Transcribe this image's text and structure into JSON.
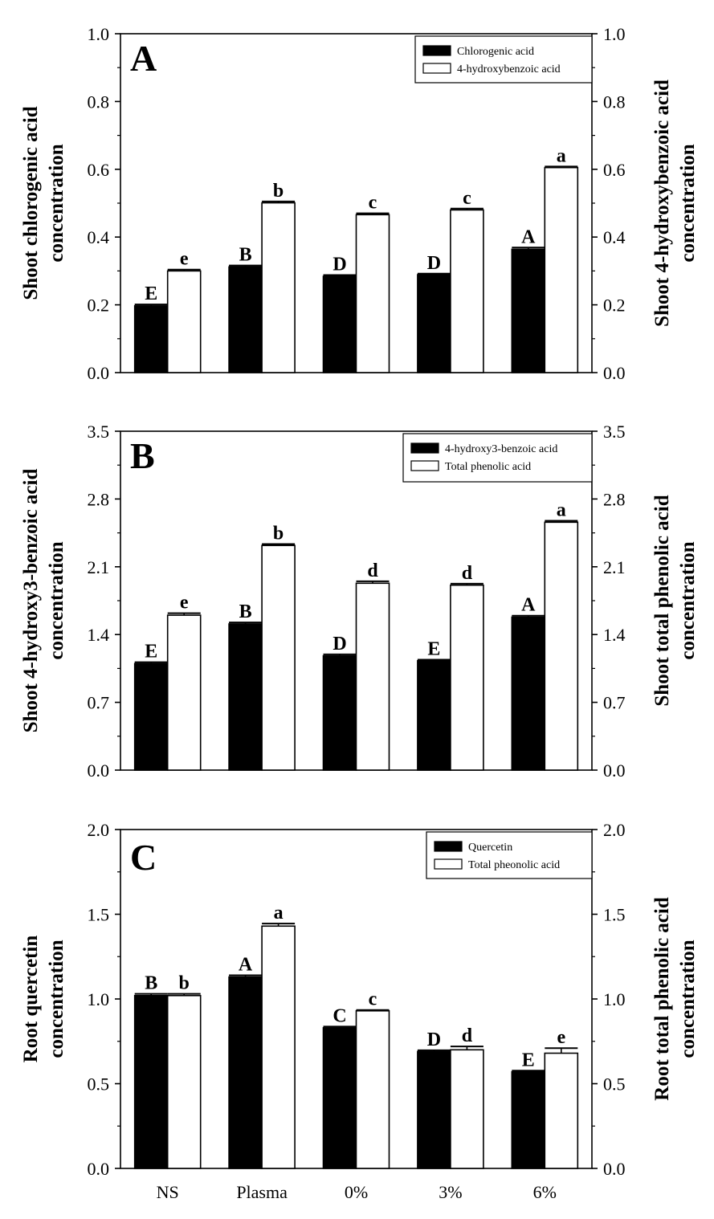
{
  "chart_data": [
    {
      "type": "bar",
      "panel_label": "A",
      "categories": [
        "NS",
        "Plasma",
        "0%",
        "3%",
        "6%"
      ],
      "ylim": [
        0,
        1.0
      ],
      "yticks": [
        "0.0",
        "0.2",
        "0.4",
        "0.6",
        "0.8",
        "1.0"
      ],
      "ylabel_left": [
        "Shoot chlorogenic acid",
        "concentration"
      ],
      "ylabel_right": [
        "Shoot 4-hydroxybenzoic acid",
        "concentration"
      ],
      "legend_position": "top-right",
      "series": [
        {
          "name": "Chlorogenic acid",
          "fill": "#000000",
          "values": [
            0.197,
            0.312,
            0.284,
            0.289,
            0.364
          ],
          "errors": [
            0.004,
            0.004,
            0.004,
            0.003,
            0.005
          ],
          "labels": [
            "E",
            "B",
            "D",
            "D",
            "A"
          ]
        },
        {
          "name": "4-hydroxybenzoic acid",
          "fill": "#ffffff",
          "values": [
            0.3,
            0.501,
            0.466,
            0.48,
            0.605
          ],
          "errors": [
            0.004,
            0.004,
            0.004,
            0.004,
            0.003
          ],
          "labels": [
            "e",
            "b",
            "c",
            "c",
            "a"
          ]
        }
      ]
    },
    {
      "type": "bar",
      "panel_label": "B",
      "categories": [
        "NS",
        "Plasma",
        "0%",
        "3%",
        "6%"
      ],
      "ylim": [
        0,
        3.5
      ],
      "yticks": [
        "0.0",
        "0.7",
        "1.4",
        "2.1",
        "2.8",
        "3.5"
      ],
      "ylabel_left": [
        "Shoot 4-hydroxy3-benzoic acid",
        "concentration"
      ],
      "ylabel_right": [
        "Shoot total phenolic acid",
        "concentration"
      ],
      "legend_position": "top-right",
      "series": [
        {
          "name": "4-hydroxy3-benzoic acid",
          "fill": "#000000",
          "values": [
            1.1,
            1.51,
            1.18,
            1.13,
            1.58
          ],
          "errors": [
            0.015,
            0.015,
            0.015,
            0.01,
            0.015
          ],
          "labels": [
            "E",
            "B",
            "D",
            "E",
            "A"
          ]
        },
        {
          "name": "Total phenolic acid",
          "fill": "#ffffff",
          "values": [
            1.6,
            2.32,
            1.93,
            1.91,
            2.56
          ],
          "errors": [
            0.02,
            0.015,
            0.02,
            0.015,
            0.015
          ],
          "labels": [
            "e",
            "b",
            "d",
            "d",
            "a"
          ]
        }
      ]
    },
    {
      "type": "bar",
      "panel_label": "C",
      "categories": [
        "NS",
        "Plasma",
        "0%",
        "3%",
        "6%"
      ],
      "ylim": [
        0,
        2.0
      ],
      "yticks": [
        "0.0",
        "0.5",
        "1.0",
        "1.5",
        "2.0"
      ],
      "ylabel_left": [
        "Root quercetin",
        "concentration"
      ],
      "ylabel_right": [
        "Root total phenolic acid",
        "concentration"
      ],
      "legend_position": "top-right",
      "series": [
        {
          "name": "Quercetin",
          "fill": "#000000",
          "values": [
            1.02,
            1.13,
            0.83,
            0.69,
            0.57
          ],
          "errors": [
            0.01,
            0.01,
            0.007,
            0.007,
            0.007
          ],
          "labels": [
            "B",
            "A",
            "C",
            "D",
            "E"
          ]
        },
        {
          "name": "Total pheonolic acid",
          "fill": "#ffffff",
          "values": [
            1.02,
            1.43,
            0.93,
            0.7,
            0.68
          ],
          "errors": [
            0.01,
            0.015,
            0.005,
            0.02,
            0.03
          ],
          "labels": [
            "b",
            "a",
            "c",
            "d",
            "e"
          ]
        }
      ]
    }
  ]
}
